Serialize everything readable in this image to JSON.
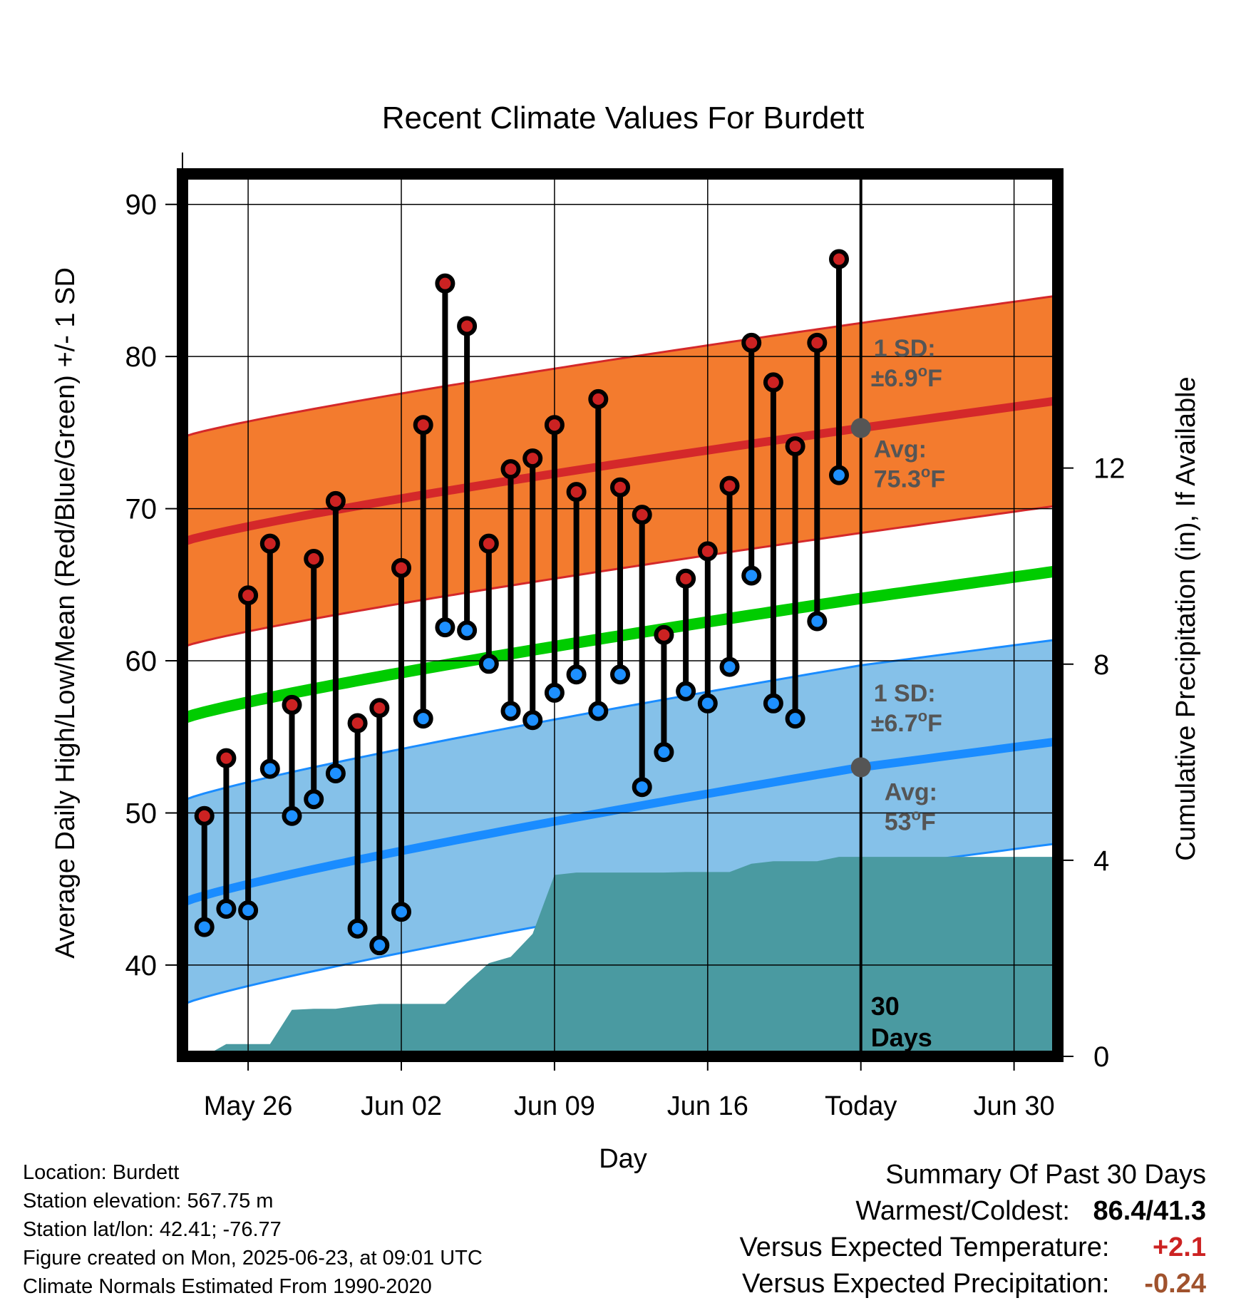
{
  "chart_data": {
    "type": "line",
    "title": "Recent Climate Values For Burdett",
    "xlabel": "Day",
    "ylabel": "Average Daily High/Low/Mean (Red/Blue/Green) +/- 1 SD",
    "y2label": "Cumulative Precipitation (in), If Available",
    "x_start": "2025-05-23",
    "x_end": "2025-07-02",
    "ylim": [
      34,
      92
    ],
    "y2lim": [
      0,
      18
    ],
    "x_ticks": [
      {
        "date": "2025-05-26",
        "label": "May 26"
      },
      {
        "date": "2025-06-02",
        "label": "Jun 02"
      },
      {
        "date": "2025-06-09",
        "label": "Jun 09"
      },
      {
        "date": "2025-06-16",
        "label": "Jun 16"
      },
      {
        "date": "2025-06-23",
        "label": "Today"
      },
      {
        "date": "2025-06-30",
        "label": "Jun 30"
      }
    ],
    "y_ticks": [
      40,
      50,
      60,
      70,
      80,
      90
    ],
    "y2_ticks": [
      0,
      4,
      8,
      12
    ],
    "grid": true,
    "today": "2025-06-23",
    "days_label": "30\nDays",
    "normal_high": {
      "dates": [
        "2025-05-23",
        "2025-06-23",
        "2025-07-02"
      ],
      "mean": [
        67.8,
        75.3,
        77.1
      ],
      "sd": 6.9,
      "sd_label": "1 SD:",
      "sd_value": "±6.9°F",
      "avg_label": "Avg:",
      "avg_value": "75.3°F"
    },
    "normal_low": {
      "dates": [
        "2025-05-23",
        "2025-06-23",
        "2025-07-02"
      ],
      "mean": [
        44.1,
        53.0,
        54.7
      ],
      "sd": 6.7,
      "sd_label": "1 SD:",
      "sd_value": "±6.7°F",
      "avg_label": "Avg:",
      "avg_value": "53°F"
    },
    "normal_mean": {
      "dates": [
        "2025-05-23",
        "2025-06-23",
        "2025-07-02"
      ],
      "values": [
        56.2,
        64.1,
        65.9
      ]
    },
    "daily": [
      {
        "date": "2025-05-24",
        "high": 49.8,
        "low": 42.5
      },
      {
        "date": "2025-05-25",
        "high": 53.6,
        "low": 43.7
      },
      {
        "date": "2025-05-26",
        "high": 64.3,
        "low": 43.6
      },
      {
        "date": "2025-05-27",
        "high": 67.7,
        "low": 52.9
      },
      {
        "date": "2025-05-28",
        "high": 57.1,
        "low": 49.8
      },
      {
        "date": "2025-05-29",
        "high": 66.7,
        "low": 50.9
      },
      {
        "date": "2025-05-30",
        "high": 70.5,
        "low": 52.6
      },
      {
        "date": "2025-05-31",
        "high": 55.9,
        "low": 42.4
      },
      {
        "date": "2025-06-01",
        "high": 56.9,
        "low": 41.3
      },
      {
        "date": "2025-06-02",
        "high": 66.1,
        "low": 43.5
      },
      {
        "date": "2025-06-03",
        "high": 75.5,
        "low": 56.2
      },
      {
        "date": "2025-06-04",
        "high": 84.8,
        "low": 62.2
      },
      {
        "date": "2025-06-05",
        "high": 82.0,
        "low": 62.0
      },
      {
        "date": "2025-06-06",
        "high": 67.7,
        "low": 59.8
      },
      {
        "date": "2025-06-07",
        "high": 72.6,
        "low": 56.7
      },
      {
        "date": "2025-06-08",
        "high": 73.3,
        "low": 56.1
      },
      {
        "date": "2025-06-09",
        "high": 75.5,
        "low": 57.9
      },
      {
        "date": "2025-06-10",
        "high": 71.1,
        "low": 59.1
      },
      {
        "date": "2025-06-11",
        "high": 77.2,
        "low": 56.7
      },
      {
        "date": "2025-06-12",
        "high": 71.4,
        "low": 59.1
      },
      {
        "date": "2025-06-13",
        "high": 69.6,
        "low": 51.7
      },
      {
        "date": "2025-06-14",
        "high": 61.7,
        "low": 54.0
      },
      {
        "date": "2025-06-15",
        "high": 65.4,
        "low": 58.0
      },
      {
        "date": "2025-06-16",
        "high": 67.2,
        "low": 57.2
      },
      {
        "date": "2025-06-17",
        "high": 71.5,
        "low": 59.6
      },
      {
        "date": "2025-06-18",
        "high": 80.9,
        "low": 65.6
      },
      {
        "date": "2025-06-19",
        "high": 78.3,
        "low": 57.2
      },
      {
        "date": "2025-06-20",
        "high": 74.1,
        "low": 56.2
      },
      {
        "date": "2025-06-21",
        "high": 80.9,
        "low": 62.6
      },
      {
        "date": "2025-06-22",
        "high": 86.4,
        "low": 72.2
      }
    ],
    "precip_cumulative": {
      "dates": [
        "2025-05-23",
        "2025-05-24",
        "2025-05-25",
        "2025-05-26",
        "2025-05-27",
        "2025-05-28",
        "2025-05-29",
        "2025-05-30",
        "2025-05-31",
        "2025-06-01",
        "2025-06-02",
        "2025-06-03",
        "2025-06-04",
        "2025-06-05",
        "2025-06-06",
        "2025-06-07",
        "2025-06-08",
        "2025-06-09",
        "2025-06-10",
        "2025-06-11",
        "2025-06-12",
        "2025-06-13",
        "2025-06-14",
        "2025-06-15",
        "2025-06-16",
        "2025-06-17",
        "2025-06-18",
        "2025-06-19",
        "2025-06-20",
        "2025-06-21",
        "2025-06-22",
        "2025-06-23",
        "2025-07-02"
      ],
      "values": [
        0,
        0,
        0.25,
        0.25,
        0.25,
        0.95,
        0.97,
        0.97,
        1.03,
        1.07,
        1.07,
        1.07,
        1.07,
        1.5,
        1.9,
        2.03,
        2.5,
        3.7,
        3.75,
        3.75,
        3.75,
        3.75,
        3.75,
        3.76,
        3.76,
        3.76,
        3.93,
        3.98,
        3.98,
        3.98,
        4.07,
        4.07,
        4.07
      ]
    },
    "colors": {
      "high_band": "#F37B2E",
      "high_mean": "#D4282A",
      "low_band": "#85C1E9",
      "low_mean": "#1A8CFF",
      "mean_line": "#00CC00",
      "precip": "#4A9AA1",
      "high_marker": "#CC2222",
      "low_marker": "#1E90FF",
      "annotation": "#555555"
    }
  },
  "footer": {
    "location": "Location: Burdett",
    "elevation": "Station elevation: 567.75 m",
    "latlon": "Station lat/lon: 42.41; -76.77",
    "created": "Figure created on Mon, 2025-06-23, at 09:01 UTC",
    "normals": "Climate Normals Estimated From 1990-2020"
  },
  "summary": {
    "title": "Summary Of Past 30 Days",
    "warmest_label": "Warmest/Coldest:",
    "warmest_value": "86.4/41.3",
    "temp_label": "Versus Expected Temperature:",
    "temp_value": "+2.1",
    "temp_color": "#CC2222",
    "precip_label": "Versus Expected Precipitation:",
    "precip_value": "-0.24",
    "precip_color": "#A0522D"
  }
}
